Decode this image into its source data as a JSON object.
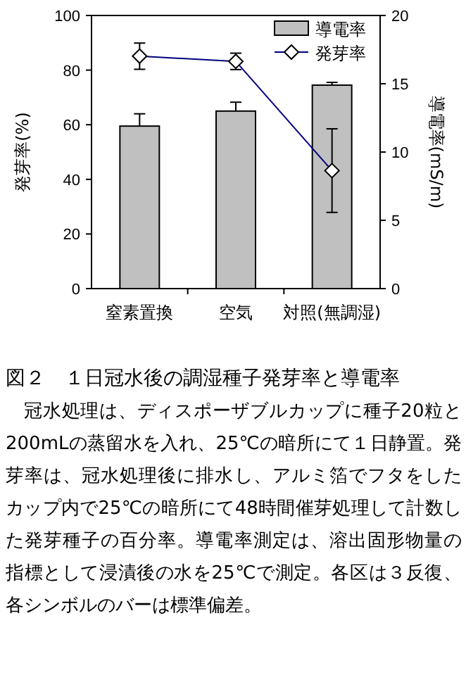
{
  "chart_data": {
    "type": "bar",
    "title": "図２　１日冠水後の調湿種子発芽率と導電率",
    "categories": [
      "窒素置換",
      "空気",
      "対照(無調湿)"
    ],
    "series": [
      {
        "name": "導電率",
        "axis": "y2",
        "color": "#c0c0c0",
        "values": [
          11.9,
          13.0,
          14.9
        ],
        "errors": [
          [
            11.9,
            12.8
          ],
          [
            13.0,
            13.65
          ],
          [
            14.9,
            15.1
          ]
        ]
      },
      {
        "name": "発芽率",
        "type": "line",
        "color": "#000080",
        "values": [
          85.1,
          83.2,
          43.2
        ],
        "errors": [
          4.8,
          3.0,
          15.3
        ]
      }
    ],
    "marker": "diamond",
    "ylabel": "発芽率(%)",
    "y2label": "導電率(mS/m)",
    "ylim": [
      0,
      100
    ],
    "yticks": [
      0,
      20,
      40,
      60,
      80,
      100
    ],
    "y2lim": [
      0,
      20
    ],
    "y2ticks": [
      0,
      5,
      10,
      15,
      20
    ],
    "grid": false,
    "legend": "top right",
    "annotations": [
      "冠水処理は、ディスポーザブルカップに種子20粒と200mLの蒸留水を入れ、25℃の暗所にて１日静置。発芽率は、冠水処理後に排水し、アルミ箔でフタをしたカップ内で25℃の暗所にて48時間催芽処理して計数した発芽種子の百分率。導電率測定は、溶出固形物量の指標として浸漬後の水を25℃で測定。各区は３反復、各シンボルのバーは標準偏差。"
    ]
  }
}
